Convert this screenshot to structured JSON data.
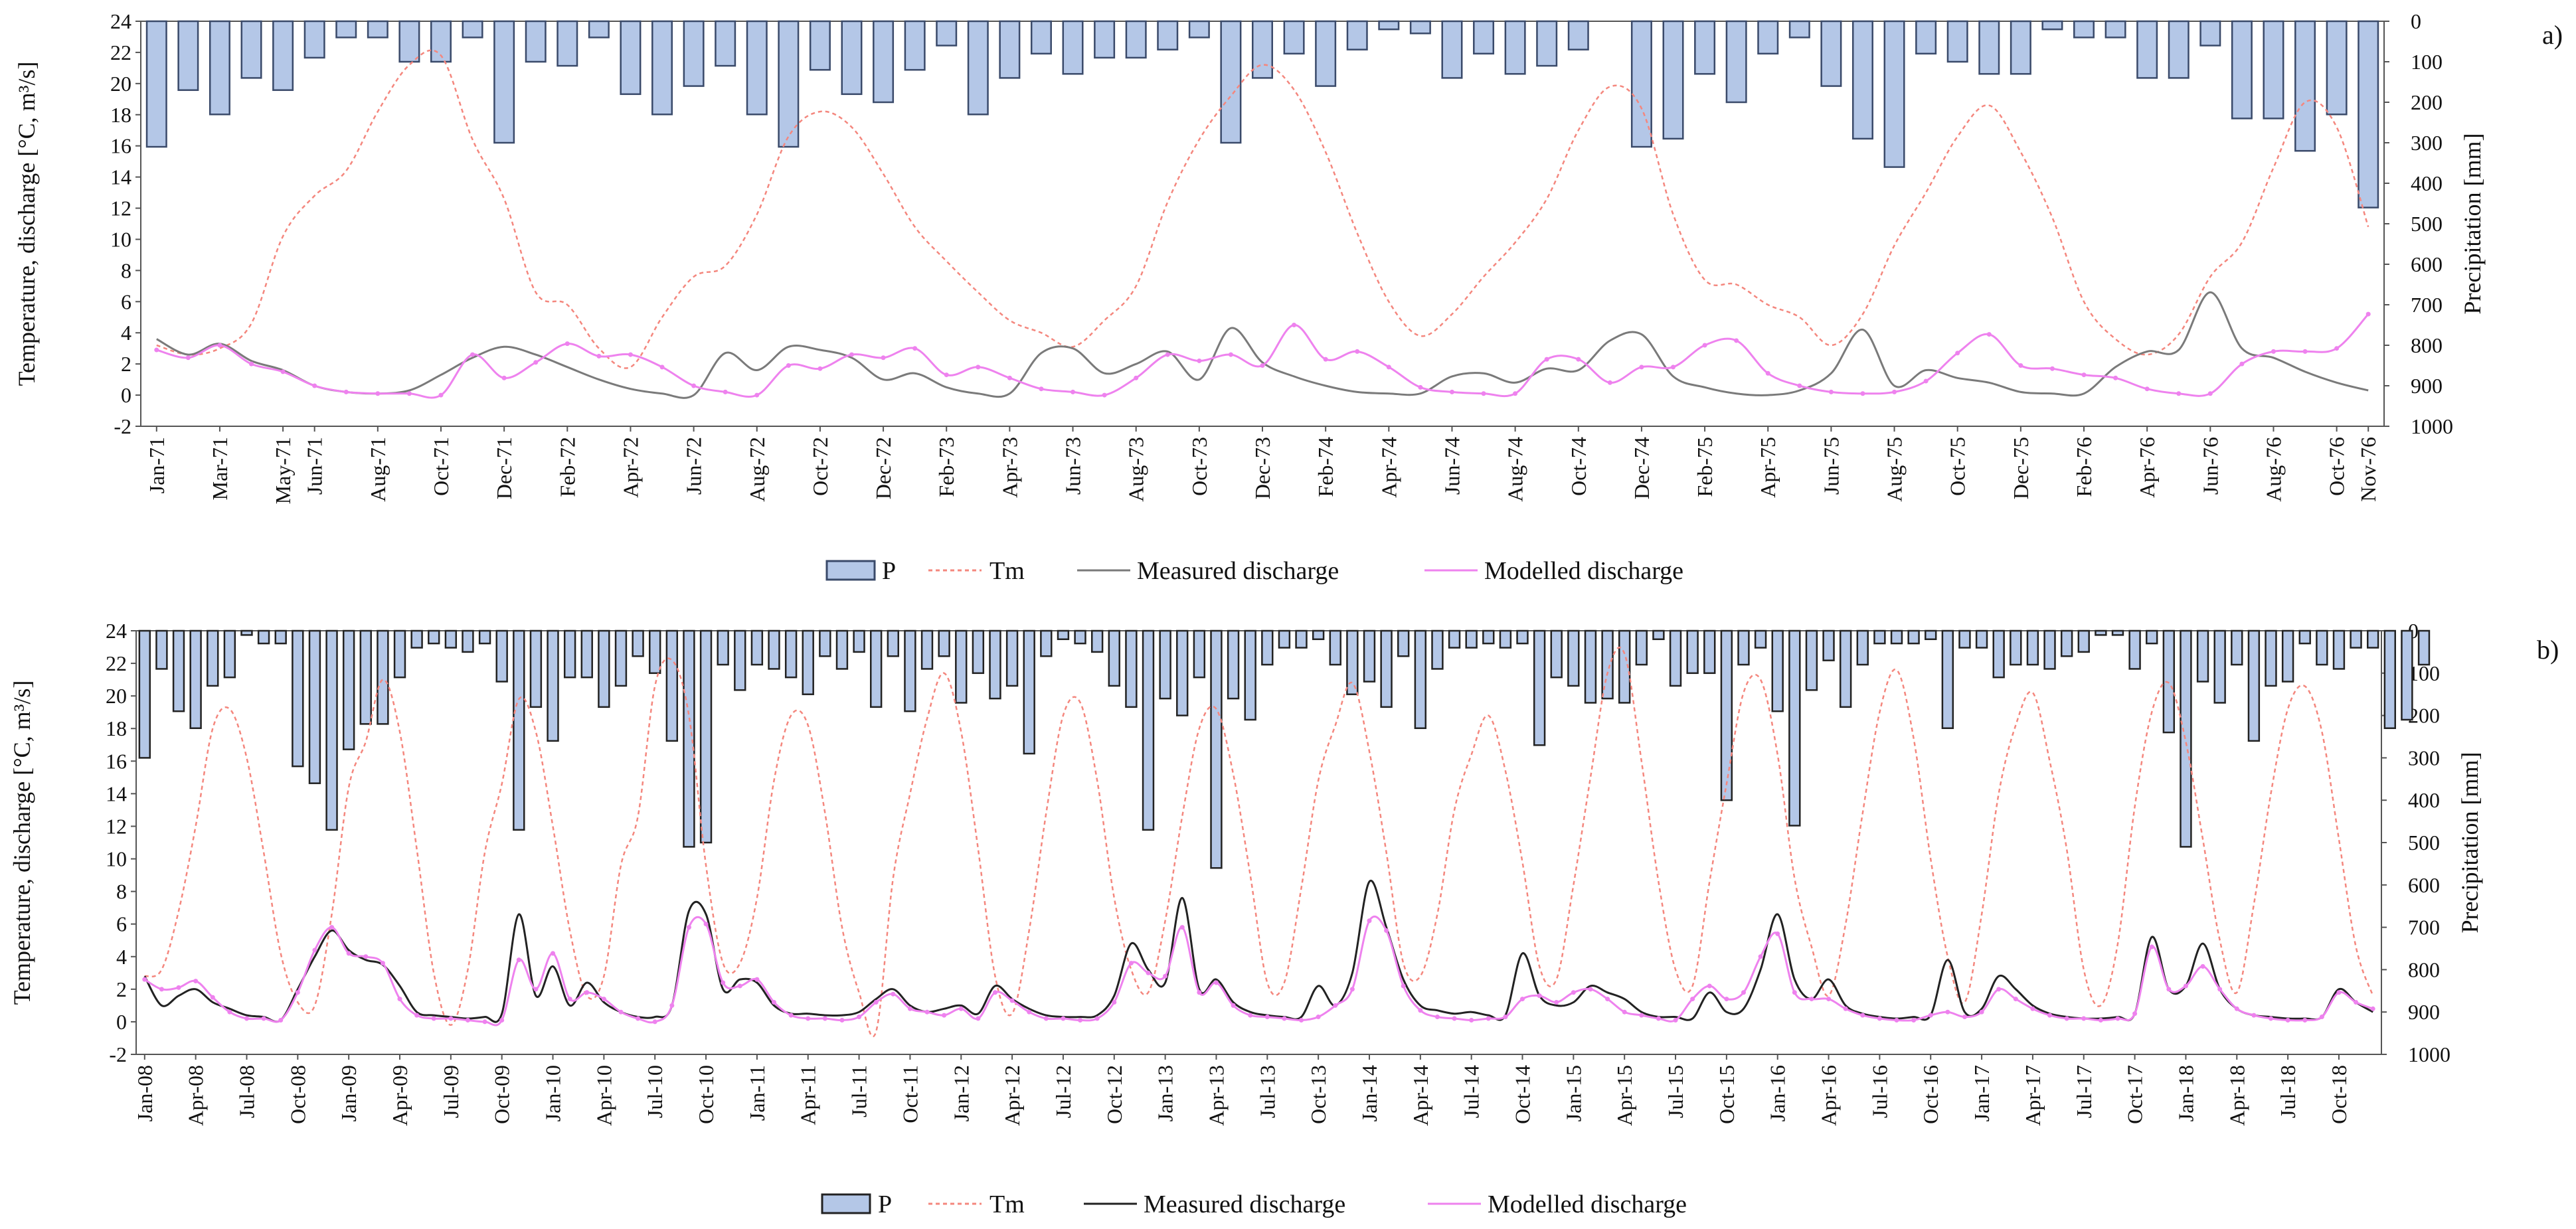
{
  "chart_data": [
    {
      "panel": "a)",
      "type": "line",
      "ylabel": "Temperature, discharge [°C, m³/s]",
      "y2label": "Precipitation [mm]",
      "ylim": [
        -2,
        24
      ],
      "y2lim": [
        0,
        1000
      ],
      "yticks": [
        "24",
        "22",
        "20",
        "18",
        "16",
        "14",
        "12",
        "10",
        "8",
        "6",
        "4",
        "2",
        "0",
        "-2"
      ],
      "y2ticks": [
        "0",
        "100",
        "200",
        "300",
        "400",
        "500",
        "600",
        "700",
        "800",
        "900",
        "1000"
      ],
      "n_months": 71,
      "x_tick_labels": [
        "Jan-71",
        "Mar-71",
        "May-71",
        "Jun-71",
        "Aug-71",
        "Oct-71",
        "Dec-71",
        "Feb-72",
        "Apr-72",
        "Jun-72",
        "Aug-72",
        "Oct-72",
        "Dec-72",
        "Feb-73",
        "Apr-73",
        "Jun-73",
        "Aug-73",
        "Oct-73",
        "Dec-73",
        "Feb-74",
        "Apr-74",
        "Jun-74",
        "Aug-74",
        "Oct-74",
        "Dec-74",
        "Feb-75",
        "Apr-75",
        "Jun-75",
        "Aug-75",
        "Oct-75",
        "Dec-75",
        "Feb-76",
        "Apr-76",
        "Jun-76",
        "Aug-76",
        "Oct-76",
        "Nov-76"
      ],
      "x_tick_months": [
        0,
        2,
        4,
        5,
        7,
        9,
        11,
        13,
        15,
        17,
        19,
        21,
        23,
        25,
        27,
        29,
        31,
        33,
        35,
        37,
        39,
        41,
        43,
        45,
        47,
        49,
        51,
        53,
        55,
        57,
        59,
        61,
        63,
        65,
        67,
        69,
        70
      ],
      "series": [
        {
          "name": "P",
          "kind": "bar",
          "axis": "right",
          "color": "#b4c7e7",
          "values": [
            310,
            170,
            230,
            140,
            170,
            90,
            40,
            40,
            100,
            100,
            40,
            300,
            100,
            110,
            40,
            180,
            230,
            160,
            110,
            230,
            310,
            120,
            180,
            200,
            120,
            60,
            230,
            140,
            80,
            130,
            90,
            90,
            70,
            40,
            300,
            140,
            80,
            160,
            70,
            20,
            30,
            140,
            80,
            130,
            110,
            70,
            0,
            310,
            290,
            130,
            200,
            80,
            40,
            160,
            290,
            360,
            80,
            100,
            130,
            130,
            20,
            40,
            40,
            140,
            140,
            60,
            240,
            240,
            320,
            230,
            460
          ]
        },
        {
          "name": "Tm",
          "kind": "line",
          "axis": "left",
          "color": "#f4877e",
          "values": [
            3.2,
            2.6,
            3.0,
            4.6,
            10.2,
            12.8,
            14.4,
            18.2,
            21.2,
            21.8,
            16.4,
            12.6,
            6.6,
            5.8,
            3.0,
            1.8,
            5.0,
            7.6,
            8.3,
            11.6,
            16.6,
            18.2,
            17.2,
            14.2,
            10.8,
            8.6,
            6.6,
            4.8,
            4.0,
            3.1,
            4.8,
            7.0,
            12.4,
            16.4,
            19.2,
            21.2,
            19.6,
            15.6,
            10.4,
            6.0,
            3.8,
            5.2,
            7.6,
            9.8,
            12.6,
            17.0,
            19.8,
            18.4,
            11.6,
            7.4,
            7.1,
            5.8,
            5.0,
            3.2,
            5.2,
            9.6,
            13.0,
            16.6,
            18.6,
            15.6,
            11.4,
            6.0,
            3.6,
            2.6,
            3.9,
            7.6,
            9.8,
            14.6,
            18.8,
            17.2,
            10.8
          ]
        },
        {
          "name": "Measured discharge",
          "kind": "line",
          "axis": "left",
          "color": "#7a7a7a",
          "values": [
            3.6,
            2.6,
            3.3,
            2.2,
            1.6,
            0.6,
            0.2,
            0.1,
            0.3,
            1.3,
            2.4,
            3.1,
            2.6,
            1.8,
            1.0,
            0.4,
            0.1,
            0.0,
            2.7,
            1.6,
            3.1,
            2.9,
            2.4,
            1.0,
            1.4,
            0.5,
            0.1,
            0.1,
            2.7,
            3.0,
            1.4,
            2.0,
            2.8,
            1.0,
            4.3,
            2.1,
            1.2,
            0.6,
            0.2,
            0.1,
            0.1,
            1.2,
            1.4,
            0.8,
            1.7,
            1.6,
            3.5,
            3.9,
            1.2,
            0.5,
            0.1,
            0.0,
            0.3,
            1.4,
            4.2,
            0.6,
            1.6,
            1.1,
            0.8,
            0.2,
            0.1,
            0.1,
            1.8,
            2.8,
            2.9,
            6.6,
            3.0,
            2.4,
            1.5,
            0.8,
            0.3
          ]
        },
        {
          "name": "Modelled discharge",
          "kind": "line",
          "axis": "left",
          "color": "#ee82ee",
          "values": [
            2.9,
            2.4,
            3.2,
            2.0,
            1.5,
            0.6,
            0.2,
            0.1,
            0.1,
            0.0,
            2.6,
            1.1,
            2.1,
            3.3,
            2.5,
            2.6,
            1.8,
            0.6,
            0.2,
            0.0,
            1.9,
            1.7,
            2.6,
            2.4,
            3.0,
            1.3,
            1.8,
            1.1,
            0.4,
            0.2,
            0.0,
            1.1,
            2.6,
            2.2,
            2.6,
            1.9,
            4.5,
            2.3,
            2.8,
            1.8,
            0.5,
            0.2,
            0.1,
            0.1,
            2.3,
            2.3,
            0.8,
            1.8,
            1.8,
            3.2,
            3.5,
            1.4,
            0.6,
            0.2,
            0.1,
            0.2,
            0.9,
            2.7,
            3.9,
            1.9,
            1.7,
            1.3,
            1.1,
            0.4,
            0.1,
            0.1,
            2.0,
            2.8,
            2.8,
            3.0,
            5.2
          ]
        }
      ]
    },
    {
      "panel": "b)",
      "type": "line",
      "ylabel": "Temperature, discharge [°C, m³/s]",
      "y2label": "Precipitation [mm]",
      "ylim": [
        -2,
        24
      ],
      "y2lim": [
        0,
        1000
      ],
      "yticks": [
        "24",
        "22",
        "20",
        "18",
        "16",
        "14",
        "12",
        "10",
        "8",
        "6",
        "4",
        "2",
        "0",
        "-2"
      ],
      "y2ticks": [
        "0",
        "100",
        "200",
        "300",
        "400",
        "500",
        "600",
        "700",
        "800",
        "900",
        "1000"
      ],
      "n_months": 132,
      "x_tick_labels": [
        "Jan-08",
        "Apr-08",
        "Jul-08",
        "Oct-08",
        "Jan-09",
        "Apr-09",
        "Jul-09",
        "Oct-09",
        "Jan-10",
        "Apr-10",
        "Jul-10",
        "Oct-10",
        "Jan-11",
        "Apr-11",
        "Jul-11",
        "Oct-11",
        "Jan-12",
        "Apr-12",
        "Jul-12",
        "Oct-12",
        "Jan-13",
        "Apr-13",
        "Jul-13",
        "Oct-13",
        "Jan-14",
        "Apr-14",
        "Jul-14",
        "Oct-14",
        "Jan-15",
        "Apr-15",
        "Jul-15",
        "Oct-15",
        "Jan-16",
        "Apr-16",
        "Jul-16",
        "Oct-16",
        "Jan-17",
        "Apr-17",
        "Jul-17",
        "Oct-17",
        "Jan-18",
        "Apr-18",
        "Jul-18",
        "Oct-18"
      ],
      "x_tick_months": [
        0,
        3,
        6,
        9,
        12,
        15,
        18,
        21,
        24,
        27,
        30,
        33,
        36,
        39,
        42,
        45,
        48,
        51,
        54,
        57,
        60,
        63,
        66,
        69,
        72,
        75,
        78,
        81,
        84,
        87,
        90,
        93,
        96,
        99,
        102,
        105,
        108,
        111,
        114,
        117,
        120,
        123,
        126,
        129
      ],
      "series": [
        {
          "name": "P",
          "kind": "bar",
          "axis": "right",
          "color": "#b4c7e7",
          "values": [
            300,
            90,
            190,
            230,
            130,
            110,
            10,
            30,
            30,
            320,
            360,
            470,
            280,
            220,
            220,
            110,
            40,
            30,
            40,
            50,
            30,
            120,
            470,
            180,
            260,
            110,
            110,
            180,
            130,
            60,
            100,
            260,
            510,
            500,
            80,
            140,
            80,
            90,
            110,
            150,
            60,
            90,
            50,
            180,
            60,
            190,
            90,
            60,
            170,
            100,
            160,
            130,
            290,
            60,
            20,
            30,
            50,
            130,
            180,
            470,
            160,
            200,
            110,
            560,
            160,
            210,
            80,
            40,
            40,
            20,
            80,
            150,
            120,
            180,
            60,
            230,
            90,
            40,
            40,
            30,
            40,
            30,
            270,
            110,
            130,
            170,
            160,
            170,
            80,
            20,
            130,
            100,
            100,
            400,
            80,
            40,
            190,
            460,
            140,
            70,
            180,
            80,
            30,
            30,
            30,
            20,
            230,
            40,
            40,
            110,
            80,
            80,
            90,
            60,
            50,
            10,
            10,
            90,
            30,
            240,
            510,
            120,
            170,
            80,
            260,
            130,
            120,
            30,
            80,
            90,
            40,
            40,
            230,
            210,
            80
          ]
        },
        {
          "name": "Tm",
          "kind": "line",
          "axis": "left",
          "color": "#f4877e",
          "values": [
            2.8,
            3.2,
            6.8,
            12.0,
            18.0,
            19.2,
            16.2,
            10.4,
            4.2,
            1.2,
            1.0,
            6.6,
            14.4,
            17.2,
            21.0,
            17.8,
            10.6,
            3.0,
            -0.2,
            3.2,
            10.4,
            14.6,
            19.8,
            17.8,
            12.0,
            5.6,
            1.6,
            2.8,
            9.6,
            12.6,
            20.6,
            22.2,
            18.8,
            9.6,
            3.6,
            3.6,
            7.6,
            14.8,
            18.8,
            18.2,
            12.8,
            5.8,
            1.8,
            -0.6,
            8.8,
            14.0,
            18.6,
            21.4,
            17.8,
            10.6,
            2.8,
            0.5,
            5.6,
            12.8,
            18.8,
            19.6,
            14.8,
            7.6,
            3.2,
            1.8,
            6.2,
            12.6,
            18.0,
            19.2,
            15.2,
            9.0,
            2.4,
            2.4,
            8.2,
            14.8,
            18.2,
            20.8,
            16.6,
            10.4,
            3.6,
            2.8,
            6.6,
            13.0,
            16.4,
            18.8,
            15.4,
            9.8,
            3.4,
            2.6,
            8.4,
            15.0,
            21.4,
            22.6,
            16.0,
            8.6,
            3.2,
            2.2,
            8.6,
            14.6,
            20.2,
            21.0,
            16.4,
            8.8,
            4.6,
            1.6,
            6.0,
            12.8,
            19.0,
            21.6,
            17.4,
            10.0,
            4.0,
            1.2,
            6.6,
            14.0,
            18.2,
            20.2,
            16.0,
            10.6,
            3.2,
            1.0,
            4.8,
            13.2,
            19.0,
            20.8,
            17.2,
            11.2,
            5.0,
            1.8,
            7.2,
            14.0,
            19.2,
            20.6,
            17.8,
            11.2,
            4.6,
            1.6
          ]
        },
        {
          "name": "Measured discharge",
          "kind": "line",
          "axis": "left",
          "color": "#222222",
          "values": [
            2.8,
            1.0,
            1.6,
            2.0,
            1.2,
            0.8,
            0.4,
            0.3,
            0.1,
            2.0,
            4.0,
            5.6,
            4.4,
            3.8,
            3.5,
            2.2,
            0.6,
            0.4,
            0.3,
            0.2,
            0.3,
            0.5,
            6.6,
            1.6,
            3.4,
            1.0,
            2.4,
            1.2,
            0.6,
            0.3,
            0.3,
            1.0,
            6.8,
            6.6,
            2.0,
            2.6,
            2.4,
            1.0,
            0.5,
            0.5,
            0.4,
            0.4,
            0.6,
            1.4,
            2.0,
            1.0,
            0.6,
            0.8,
            1.0,
            0.5,
            2.2,
            1.4,
            0.8,
            0.4,
            0.3,
            0.3,
            0.4,
            1.6,
            4.8,
            3.2,
            2.4,
            7.6,
            2.0,
            2.6,
            1.2,
            0.6,
            0.4,
            0.3,
            0.3,
            2.2,
            1.0,
            3.0,
            8.6,
            5.8,
            2.6,
            1.0,
            0.7,
            0.5,
            0.6,
            0.4,
            0.4,
            4.2,
            1.6,
            1.0,
            1.2,
            2.2,
            1.8,
            1.4,
            0.6,
            0.3,
            0.3,
            0.2,
            1.8,
            0.6,
            0.8,
            3.2,
            6.6,
            2.6,
            1.4,
            2.6,
            1.0,
            0.5,
            0.3,
            0.2,
            0.3,
            0.4,
            3.8,
            0.6,
            0.8,
            2.8,
            2.0,
            1.0,
            0.5,
            0.3,
            0.2,
            0.2,
            0.3,
            0.5,
            5.2,
            2.0,
            2.2,
            4.8,
            2.0,
            0.8,
            0.4,
            0.3,
            0.2,
            0.2,
            0.3,
            2.0,
            1.2,
            0.6
          ]
        },
        {
          "name": "Modelled discharge",
          "kind": "line",
          "axis": "left",
          "color": "#ee82ee",
          "values": [
            2.6,
            2.0,
            2.1,
            2.5,
            1.5,
            0.6,
            0.2,
            0.2,
            0.1,
            1.8,
            4.4,
            5.8,
            4.2,
            4.0,
            3.6,
            1.4,
            0.4,
            0.2,
            0.2,
            0.1,
            0.0,
            0.1,
            3.8,
            2.0,
            4.2,
            1.4,
            1.8,
            1.4,
            0.6,
            0.2,
            0.0,
            1.0,
            5.8,
            6.0,
            2.4,
            2.2,
            2.6,
            1.2,
            0.4,
            0.2,
            0.2,
            0.1,
            0.3,
            1.2,
            1.7,
            0.8,
            0.6,
            0.4,
            0.8,
            0.2,
            1.8,
            1.3,
            0.6,
            0.2,
            0.2,
            0.1,
            0.2,
            1.2,
            3.6,
            3.0,
            2.8,
            5.8,
            1.8,
            2.4,
            1.0,
            0.4,
            0.3,
            0.2,
            0.1,
            0.3,
            1.0,
            2.0,
            6.2,
            5.6,
            2.2,
            0.7,
            0.3,
            0.2,
            0.1,
            0.2,
            0.3,
            1.4,
            1.6,
            1.2,
            1.8,
            2.0,
            1.4,
            0.6,
            0.4,
            0.2,
            0.1,
            1.4,
            2.2,
            1.4,
            1.8,
            4.0,
            5.4,
            1.8,
            1.4,
            1.4,
            0.8,
            0.4,
            0.2,
            0.1,
            0.1,
            0.4,
            0.6,
            0.3,
            0.6,
            2.0,
            1.4,
            0.8,
            0.4,
            0.2,
            0.2,
            0.1,
            0.2,
            0.5,
            4.6,
            2.0,
            2.2,
            3.4,
            2.0,
            0.8,
            0.4,
            0.2,
            0.1,
            0.1,
            0.3,
            1.8,
            1.2,
            0.8
          ]
        }
      ]
    }
  ],
  "legend": {
    "p_label": "P",
    "tm_label": "Tm",
    "measured_label": "Measured discharge",
    "modelled_label": "Modelled discharge"
  }
}
